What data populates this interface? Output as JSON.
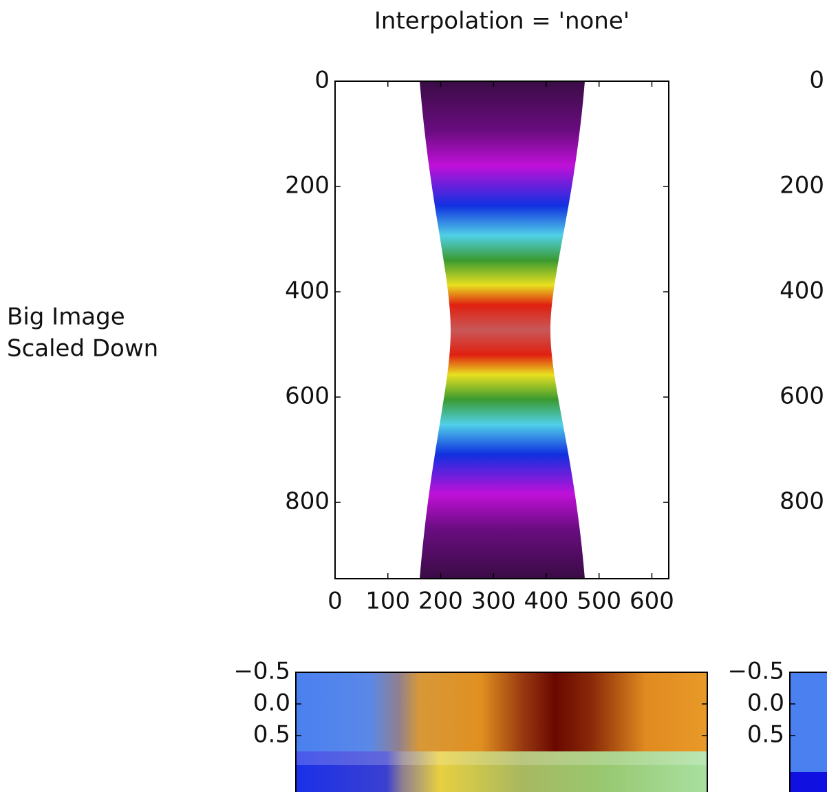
{
  "chart_data": [
    {
      "type": "image",
      "title": "Interpolation = 'none'",
      "row_label": [
        "Big Image",
        "Scaled Down"
      ],
      "xlim": [
        0,
        632
      ],
      "ylim": [
        945,
        0
      ],
      "xticks": [
        0,
        100,
        200,
        300,
        400,
        500,
        600
      ],
      "yticks": [
        0,
        200,
        400,
        600,
        800
      ]
    },
    {
      "type": "image",
      "ylim": [
        945,
        0
      ],
      "yticks": [
        0,
        200,
        400,
        600,
        800
      ]
    },
    {
      "type": "image",
      "ylim": [
        1.5,
        -0.5
      ],
      "yticks": [
        {
          "value": -0.5,
          "label": "−0.5"
        },
        {
          "value": 0,
          "label": "0.0"
        },
        {
          "value": 0.5,
          "label": "0.5"
        }
      ]
    },
    {
      "type": "image",
      "ylim": [
        1.5,
        -0.5
      ],
      "yticks": [
        {
          "value": -0.5,
          "label": "−0.5"
        },
        {
          "value": 0,
          "label": "0.0"
        },
        {
          "value": 0.5,
          "label": "0.5"
        }
      ]
    }
  ]
}
